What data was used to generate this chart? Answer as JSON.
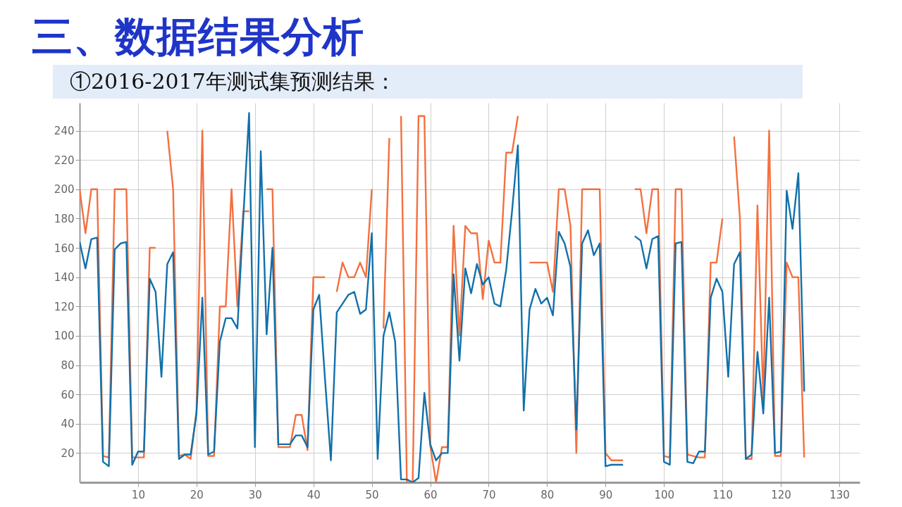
{
  "chart_data": {
    "type": "line",
    "title": "三、数据结果分析",
    "subtitle": "①2016-2017年测试集预测结果：",
    "x": [
      0,
      1,
      2,
      3,
      4,
      5,
      6,
      7,
      8,
      9,
      10,
      11,
      12,
      13,
      14,
      15,
      16,
      17,
      18,
      19,
      20,
      21,
      22,
      23,
      24,
      25,
      26,
      27,
      28,
      29,
      30,
      31,
      32,
      33,
      34,
      35,
      36,
      37,
      38,
      39,
      40,
      41,
      42,
      43,
      44,
      45,
      46,
      47,
      48,
      49,
      50,
      51,
      52,
      53,
      54,
      55,
      56,
      57,
      58,
      59,
      60,
      61,
      62,
      63,
      64,
      65,
      66,
      67,
      68,
      69,
      70,
      71,
      72,
      73,
      74,
      75,
      76,
      77,
      78,
      79,
      80,
      81,
      82,
      83,
      84,
      85,
      86,
      87,
      88,
      89,
      90,
      91,
      92,
      93,
      94,
      95,
      96,
      97,
      98,
      99,
      100,
      101,
      102,
      103,
      104,
      105,
      106,
      107,
      108,
      109,
      110,
      111,
      112,
      113,
      114,
      115,
      116,
      117,
      118,
      119,
      120,
      121,
      122,
      123,
      124
    ],
    "series": [
      {
        "color": "#f4703f",
        "values": [
          200,
          170,
          200,
          200,
          18,
          17,
          200,
          200,
          200,
          17,
          17,
          17,
          160,
          160,
          null,
          240,
          200,
          18,
          19,
          16,
          49,
          240,
          18,
          18,
          120,
          120,
          200,
          120,
          185,
          185,
          null,
          null,
          200,
          200,
          24,
          24,
          24,
          46,
          46,
          22,
          140,
          140,
          140,
          null,
          130,
          150,
          140,
          140,
          150,
          140,
          200,
          null,
          105,
          235,
          null,
          250,
          0,
          0,
          250,
          250,
          25,
          0,
          24,
          24,
          175,
          100,
          175,
          170,
          170,
          125,
          165,
          150,
          150,
          225,
          225,
          250,
          null,
          150,
          150,
          150,
          150,
          130,
          200,
          200,
          175,
          20,
          200,
          200,
          200,
          200,
          20,
          15,
          15,
          15,
          null,
          200,
          200,
          170,
          200,
          200,
          18,
          17,
          200,
          200,
          19,
          18,
          17,
          17,
          150,
          150,
          180,
          null,
          236,
          180,
          16,
          16,
          189,
          56,
          240,
          18,
          18,
          150,
          140,
          140,
          17
        ]
      },
      {
        "color": "#1170aa",
        "values": [
          164,
          146,
          166,
          167,
          14,
          11,
          159,
          163,
          164,
          12,
          21,
          21,
          139,
          130,
          72,
          149,
          157,
          16,
          19,
          19,
          47,
          126,
          19,
          21,
          96,
          112,
          112,
          105,
          180,
          252,
          24,
          226,
          101,
          160,
          26,
          26,
          26,
          32,
          32,
          24,
          118,
          128,
          70,
          15,
          116,
          122,
          128,
          130,
          115,
          118,
          170,
          16,
          100,
          116,
          96,
          2,
          2,
          0,
          3,
          61,
          26,
          15,
          20,
          20,
          142,
          83,
          146,
          129,
          149,
          135,
          140,
          122,
          120,
          145,
          185,
          230,
          49,
          118,
          132,
          122,
          126,
          114,
          171,
          163,
          147,
          36,
          163,
          172,
          155,
          163,
          11,
          12,
          12,
          12,
          null,
          168,
          165,
          146,
          166,
          168,
          14,
          12,
          163,
          164,
          14,
          13,
          21,
          21,
          126,
          139,
          130,
          72,
          149,
          157,
          16,
          19,
          89,
          47,
          126,
          20,
          21,
          199,
          173,
          211,
          62
        ]
      }
    ],
    "xlim": [
      0,
      133.5
    ],
    "xticks": [
      10,
      20,
      30,
      40,
      50,
      60,
      70,
      80,
      90,
      100,
      110,
      120,
      130
    ],
    "ylim": [
      0,
      259
    ],
    "yticks": [
      20,
      40,
      60,
      80,
      100,
      120,
      140,
      160,
      180,
      200,
      220,
      240
    ],
    "grid": true
  }
}
